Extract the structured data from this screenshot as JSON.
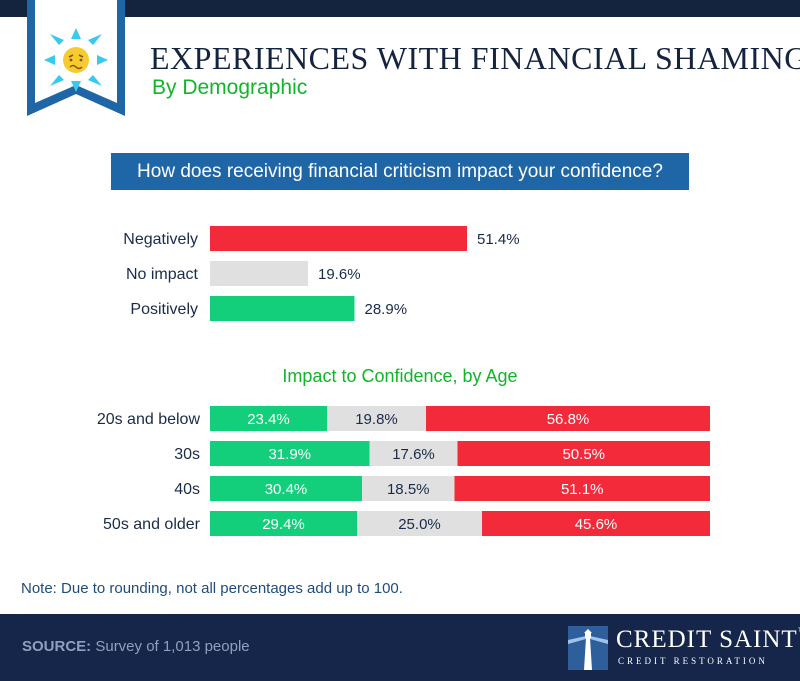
{
  "header": {
    "title": "EXPERIENCES WITH FINANCIAL SHAMING",
    "subtitle": "By Demographic",
    "question": "How does receiving financial criticism impact your confidence?",
    "age_title": "Impact to Confidence, by Age",
    "icon": "distressed-face-icon"
  },
  "colors": {
    "negative": "#f22a39",
    "neutral": "#e0e0e0",
    "positive": "#13cf7c",
    "navy": "#14243f",
    "banner": "#1f66a6",
    "green_text": "#11b52a"
  },
  "chart_data": [
    {
      "type": "bar",
      "orientation": "horizontal",
      "title": "How does receiving financial criticism impact your confidence?",
      "categories": [
        "Negatively",
        "No impact",
        "Positively"
      ],
      "values": [
        51.4,
        19.6,
        28.9
      ],
      "labels": [
        "51.4%",
        "19.6%",
        "28.9%"
      ],
      "colors": [
        "#f22a39",
        "#e0e0e0",
        "#13cf7c"
      ],
      "xlim": [
        0,
        100
      ]
    },
    {
      "type": "bar",
      "orientation": "horizontal",
      "stacked": true,
      "title": "Impact to Confidence, by Age",
      "categories": [
        "20s and below",
        "30s",
        "40s",
        "50s and older"
      ],
      "series": [
        {
          "values": [
            23.4,
            31.9,
            30.4,
            29.4
          ],
          "labels": [
            "23.4%",
            "31.9%",
            "30.4%",
            "29.4%"
          ],
          "color": "#13cf7c"
        },
        {
          "values": [
            19.8,
            17.6,
            18.5,
            25.0
          ],
          "labels": [
            "19.8%",
            "17.6%",
            "18.5%",
            "25.0%"
          ],
          "color": "#e0e0e0"
        },
        {
          "values": [
            56.8,
            50.5,
            51.1,
            45.6
          ],
          "labels": [
            "56.8%",
            "50.5%",
            "51.1%",
            "45.6%"
          ],
          "color": "#f22a39"
        }
      ]
    }
  ],
  "note": "Note: Due to rounding, not all percentages add up to 100.",
  "footer": {
    "source_label": "SOURCE:",
    "source_text": "Survey of 1,013 people",
    "brand_name": "CREDIT SAINT",
    "brand_tm": "™",
    "brand_tagline": "CREDIT RESTORATION",
    "brand_icon": "lighthouse-icon"
  }
}
